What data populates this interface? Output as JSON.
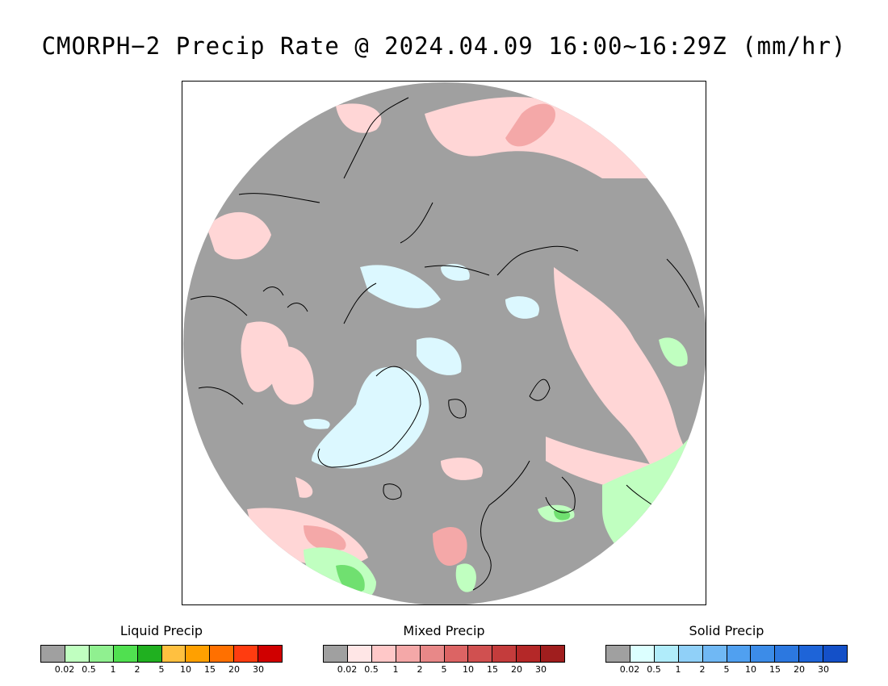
{
  "title": "CMORPH−2 Precip Rate @ 2024.04.09 16:00~16:29Z (mm/hr)",
  "map": {
    "projection": "north-polar-stereographic",
    "colors": {
      "background": "#a0a0a0",
      "ice": "#dcf8ff",
      "mixed_light": "#ffd6d6",
      "mixed_mid": "#f4a8a8",
      "mixed_strong": "#e07878",
      "liquid_light": "#c0ffc0",
      "liquid_mid": "#70e070",
      "liquid_strong": "#30c030",
      "coast": "#000000"
    }
  },
  "legends": [
    {
      "title": "Liquid Precip",
      "colors": [
        "#a0a0a0",
        "#c0ffc0",
        "#90f090",
        "#50e050",
        "#20b020",
        "#ffc040",
        "#ffa000",
        "#ff7000",
        "#ff3c10",
        "#d00000"
      ],
      "ticks": [
        "0.02",
        "0.5",
        "1",
        "2",
        "5",
        "10",
        "15",
        "20",
        "30"
      ]
    },
    {
      "title": "Mixed Precip",
      "colors": [
        "#a0a0a0",
        "#ffe6e6",
        "#ffc8c8",
        "#f4a8a8",
        "#e88888",
        "#dc6464",
        "#d05050",
        "#c43c3c",
        "#b42828",
        "#a01e1e"
      ],
      "ticks": [
        "0.02",
        "0.5",
        "1",
        "2",
        "5",
        "10",
        "15",
        "20",
        "30"
      ]
    },
    {
      "title": "Solid Precip",
      "colors": [
        "#a0a0a0",
        "#dcffff",
        "#b0ecfa",
        "#90d0f8",
        "#70b8f4",
        "#50a0f0",
        "#3c8ce8",
        "#2c78e0",
        "#1e64d8",
        "#1450c8"
      ],
      "ticks": [
        "0.02",
        "0.5",
        "1",
        "2",
        "5",
        "10",
        "15",
        "20",
        "30"
      ]
    }
  ]
}
